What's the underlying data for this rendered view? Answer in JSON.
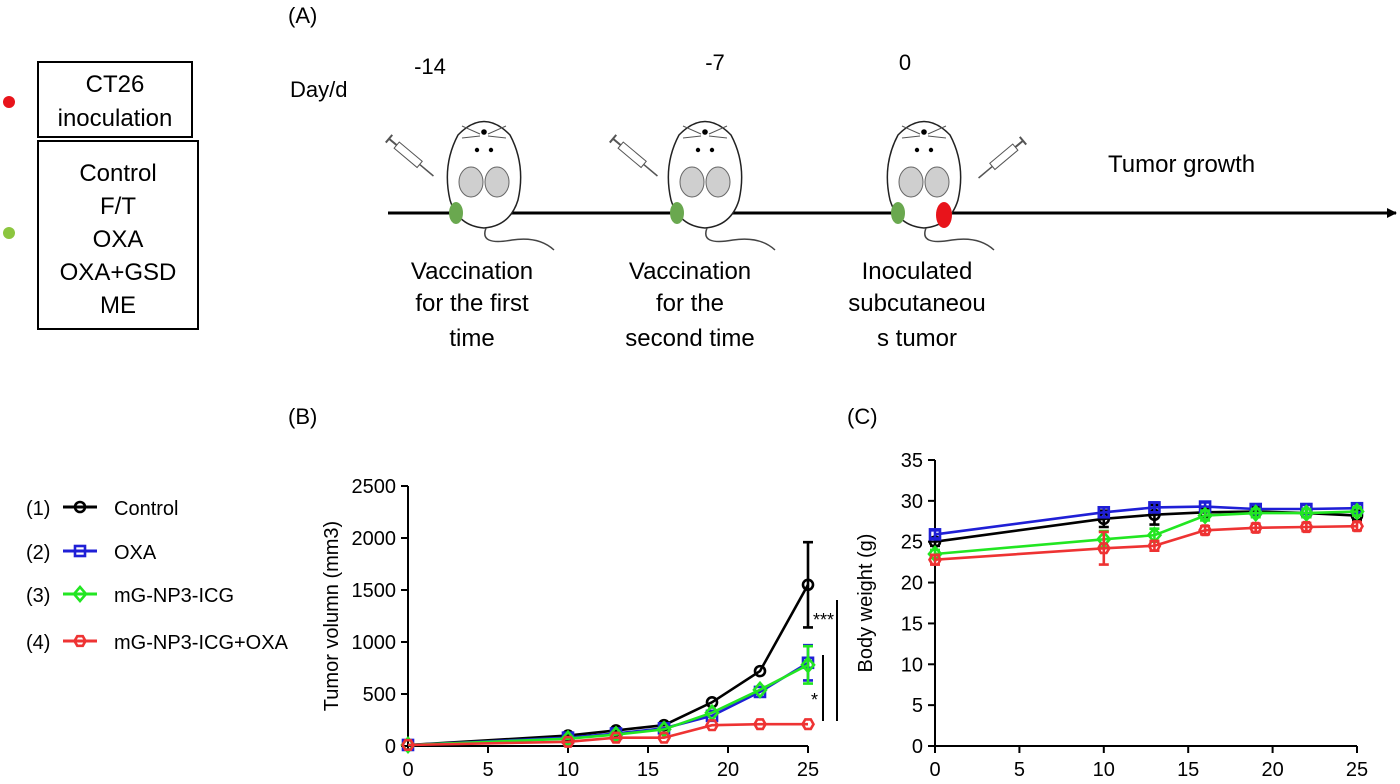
{
  "panel_a": {
    "label": "(A)",
    "day_label": "Day/d",
    "days": [
      "-14",
      "-7",
      "0"
    ],
    "legend_box1": [
      "CT26",
      "inoculation"
    ],
    "legend_box2": [
      "Control",
      "F/T",
      "OXA",
      "OXA+GSD",
      "ME"
    ],
    "tumor_growth": "Tumor growth",
    "captions": [
      [
        "Vaccination",
        "for the first",
        "time"
      ],
      [
        "Vaccination",
        "for the",
        "second time"
      ],
      [
        "Inoculated",
        "subcutaneou",
        "s tumor"
      ]
    ],
    "colors": {
      "red_dot": "#e8141b",
      "green_dot": "#8cc63f",
      "green_site": "#6aa84f"
    }
  },
  "legend": {
    "items": [
      {
        "index": "(1)",
        "name": "Control",
        "color": "#000000",
        "marker": "circle"
      },
      {
        "index": "(2)",
        "name": "OXA",
        "color": "#1f1fd6",
        "marker": "square"
      },
      {
        "index": "(3)",
        "name": "mG-NP3-ICG",
        "color": "#22e622",
        "marker": "diamond"
      },
      {
        "index": "(4)",
        "name": "mG-NP3-ICG+OXA",
        "color": "#ee3333",
        "marker": "hexagon"
      }
    ]
  },
  "chart_data": [
    {
      "panel_label": "(B)",
      "type": "line",
      "xlabel": "",
      "ylabel": "Tumor volumn (mm3)",
      "xlim": [
        0,
        25
      ],
      "ylim": [
        0,
        2500
      ],
      "xticks": [
        "0",
        "5",
        "10",
        "15",
        "20",
        "25"
      ],
      "yticks": [
        "0",
        "500",
        "1000",
        "1500",
        "2000",
        "2500"
      ],
      "x": [
        0,
        10,
        13,
        16,
        19,
        22,
        25
      ],
      "series": [
        {
          "name": "Control",
          "values": [
            10,
            100,
            150,
            200,
            420,
            720,
            1550
          ],
          "errors": [
            0,
            0,
            0,
            0,
            0,
            0,
            410
          ]
        },
        {
          "name": "OXA",
          "values": [
            10,
            80,
            120,
            170,
            290,
            520,
            800
          ],
          "errors": [
            0,
            0,
            0,
            0,
            0,
            0,
            170
          ]
        },
        {
          "name": "mG-NP3-ICG",
          "values": [
            10,
            70,
            110,
            160,
            320,
            540,
            780
          ],
          "errors": [
            0,
            0,
            0,
            0,
            0,
            0,
            180
          ]
        },
        {
          "name": "mG-NP3-ICG+OXA",
          "values": [
            10,
            40,
            80,
            80,
            200,
            210,
            210
          ],
          "errors": [
            0,
            0,
            0,
            0,
            0,
            0,
            0
          ]
        }
      ],
      "significance": [
        "***",
        "*"
      ]
    },
    {
      "panel_label": "(C)",
      "type": "line",
      "xlabel": "",
      "ylabel": "Body weight (g)",
      "xlim": [
        0,
        25
      ],
      "ylim": [
        0,
        35
      ],
      "xticks": [
        "0",
        "5",
        "10",
        "15",
        "20",
        "25"
      ],
      "yticks": [
        "0",
        "5",
        "10",
        "15",
        "20",
        "25",
        "30",
        "35"
      ],
      "x": [
        0,
        10,
        13,
        16,
        19,
        22,
        25
      ],
      "series": [
        {
          "name": "Control",
          "values": [
            25.0,
            27.8,
            28.3,
            28.6,
            28.7,
            28.5,
            28.2
          ],
          "errors": [
            0.5,
            1.0,
            1.2,
            0.5,
            0.5,
            0.5,
            0.6
          ]
        },
        {
          "name": "OXA",
          "values": [
            25.9,
            28.6,
            29.2,
            29.3,
            29.0,
            29.0,
            29.1
          ],
          "errors": [
            0.5,
            0.6,
            0.6,
            0.5,
            0.5,
            0.5,
            0.5
          ]
        },
        {
          "name": "mG-NP3-ICG",
          "values": [
            23.5,
            25.3,
            25.8,
            28.2,
            28.5,
            28.5,
            28.7
          ],
          "errors": [
            0.5,
            1.0,
            0.8,
            0.6,
            0.5,
            0.5,
            0.5
          ]
        },
        {
          "name": "mG-NP3-ICG+OXA",
          "values": [
            22.8,
            24.2,
            24.5,
            26.4,
            26.7,
            26.8,
            26.9
          ],
          "errors": [
            0.6,
            2.0,
            0.6,
            0.5,
            0.5,
            0.5,
            0.5
          ]
        }
      ]
    }
  ]
}
